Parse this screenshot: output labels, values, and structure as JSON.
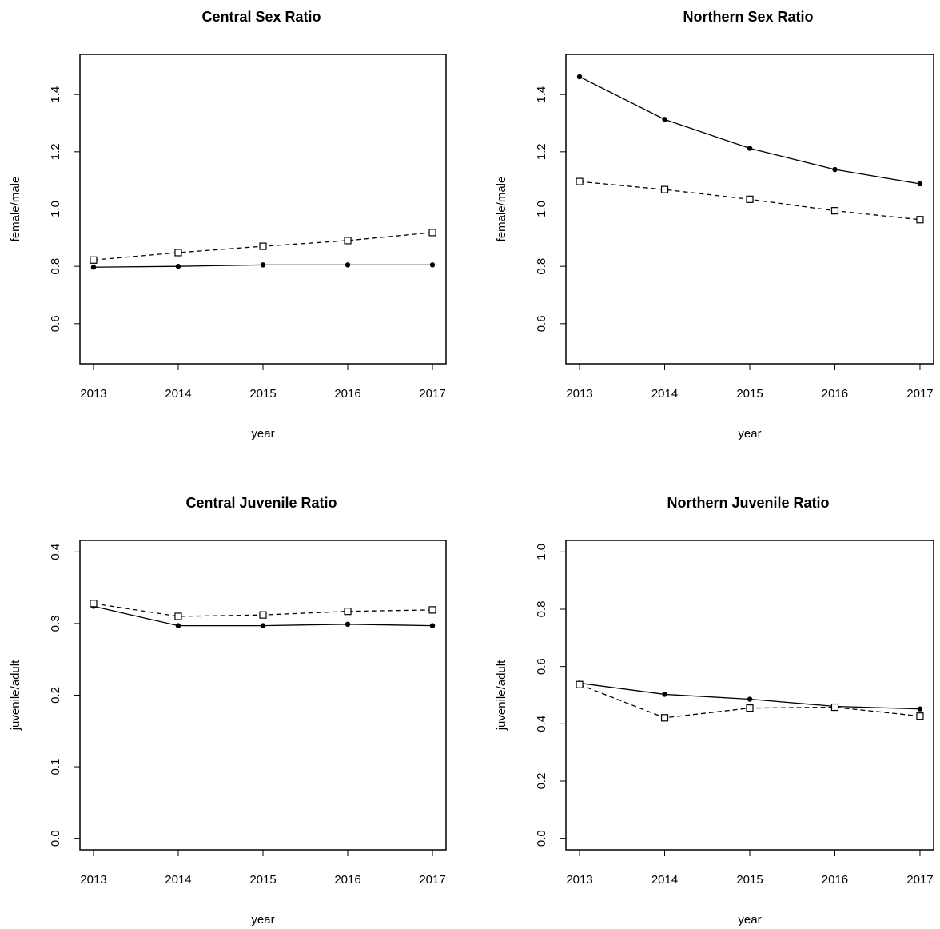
{
  "chart_data": [
    {
      "type": "line",
      "title": "Central Sex Ratio",
      "xlabel": "year",
      "ylabel": "female/male",
      "x": [
        2013,
        2014,
        2015,
        2016,
        2017
      ],
      "xlim": [
        2012.84,
        2017.16
      ],
      "xticks": [
        2013,
        2014,
        2015,
        2016,
        2017
      ],
      "ylim": [
        0.46,
        1.54
      ],
      "yticks": [
        0.6,
        0.8,
        {
          "value": 1,
          "label": "1.0"
        },
        1.2,
        1.4
      ],
      "series": [
        {
          "color": "#000000",
          "linestyle": "solid",
          "marker": "filled-circle",
          "values": [
            0.797,
            0.8,
            0.805,
            0.805,
            0.805
          ]
        },
        {
          "color": "#000000",
          "linestyle": "dashed",
          "marker": "open-square",
          "values": [
            0.822,
            0.848,
            0.87,
            0.89,
            0.918
          ]
        }
      ]
    },
    {
      "type": "line",
      "title": "Northern Sex Ratio",
      "xlabel": "year",
      "ylabel": "female/male",
      "x": [
        2013,
        2014,
        2015,
        2016,
        2017
      ],
      "xlim": [
        2012.84,
        2017.16
      ],
      "xticks": [
        2013,
        2014,
        2015,
        2016,
        2017
      ],
      "ylim": [
        0.46,
        1.54
      ],
      "yticks": [
        0.6,
        0.8,
        {
          "value": 1,
          "label": "1.0"
        },
        1.2,
        1.4
      ],
      "series": [
        {
          "color": "#000000",
          "linestyle": "solid",
          "marker": "filled-circle",
          "values": [
            1.462,
            1.313,
            1.212,
            1.138,
            1.088
          ]
        },
        {
          "color": "#000000",
          "linestyle": "dashed",
          "marker": "open-square",
          "values": [
            1.096,
            1.068,
            1.034,
            0.994,
            0.963
          ]
        }
      ]
    },
    {
      "type": "line",
      "title": "Central Juvenile Ratio",
      "xlabel": "year",
      "ylabel": "juvenile/adult",
      "x": [
        2013,
        2014,
        2015,
        2016,
        2017
      ],
      "xlim": [
        2012.84,
        2017.16
      ],
      "xticks": [
        2013,
        2014,
        2015,
        2016,
        2017
      ],
      "ylim": [
        -0.016,
        0.416
      ],
      "yticks": [
        {
          "value": 0,
          "label": "0.0"
        },
        0.1,
        0.2,
        0.3,
        0.4
      ],
      "series": [
        {
          "color": "#000000",
          "linestyle": "solid",
          "marker": "filled-circle",
          "values": [
            0.324,
            0.297,
            0.297,
            0.299,
            0.297
          ]
        },
        {
          "color": "#000000",
          "linestyle": "dashed",
          "marker": "open-square",
          "values": [
            0.328,
            0.31,
            0.312,
            0.317,
            0.319
          ]
        }
      ]
    },
    {
      "type": "line",
      "title": "Northern Juvenile Ratio",
      "xlabel": "year",
      "ylabel": "juvenile/adult",
      "x": [
        2013,
        2014,
        2015,
        2016,
        2017
      ],
      "xlim": [
        2012.84,
        2017.16
      ],
      "xticks": [
        2013,
        2014,
        2015,
        2016,
        2017
      ],
      "ylim": [
        -0.04,
        1.04
      ],
      "yticks": [
        {
          "value": 0,
          "label": "0.0"
        },
        0.2,
        0.4,
        0.6,
        0.8,
        {
          "value": 1,
          "label": "1.0"
        }
      ],
      "series": [
        {
          "color": "#000000",
          "linestyle": "solid",
          "marker": "filled-circle",
          "values": [
            0.542,
            0.503,
            0.486,
            0.461,
            0.452
          ]
        },
        {
          "color": "#000000",
          "linestyle": "dashed",
          "marker": "open-square",
          "values": [
            0.537,
            0.421,
            0.455,
            0.458,
            0.427
          ]
        }
      ]
    }
  ]
}
